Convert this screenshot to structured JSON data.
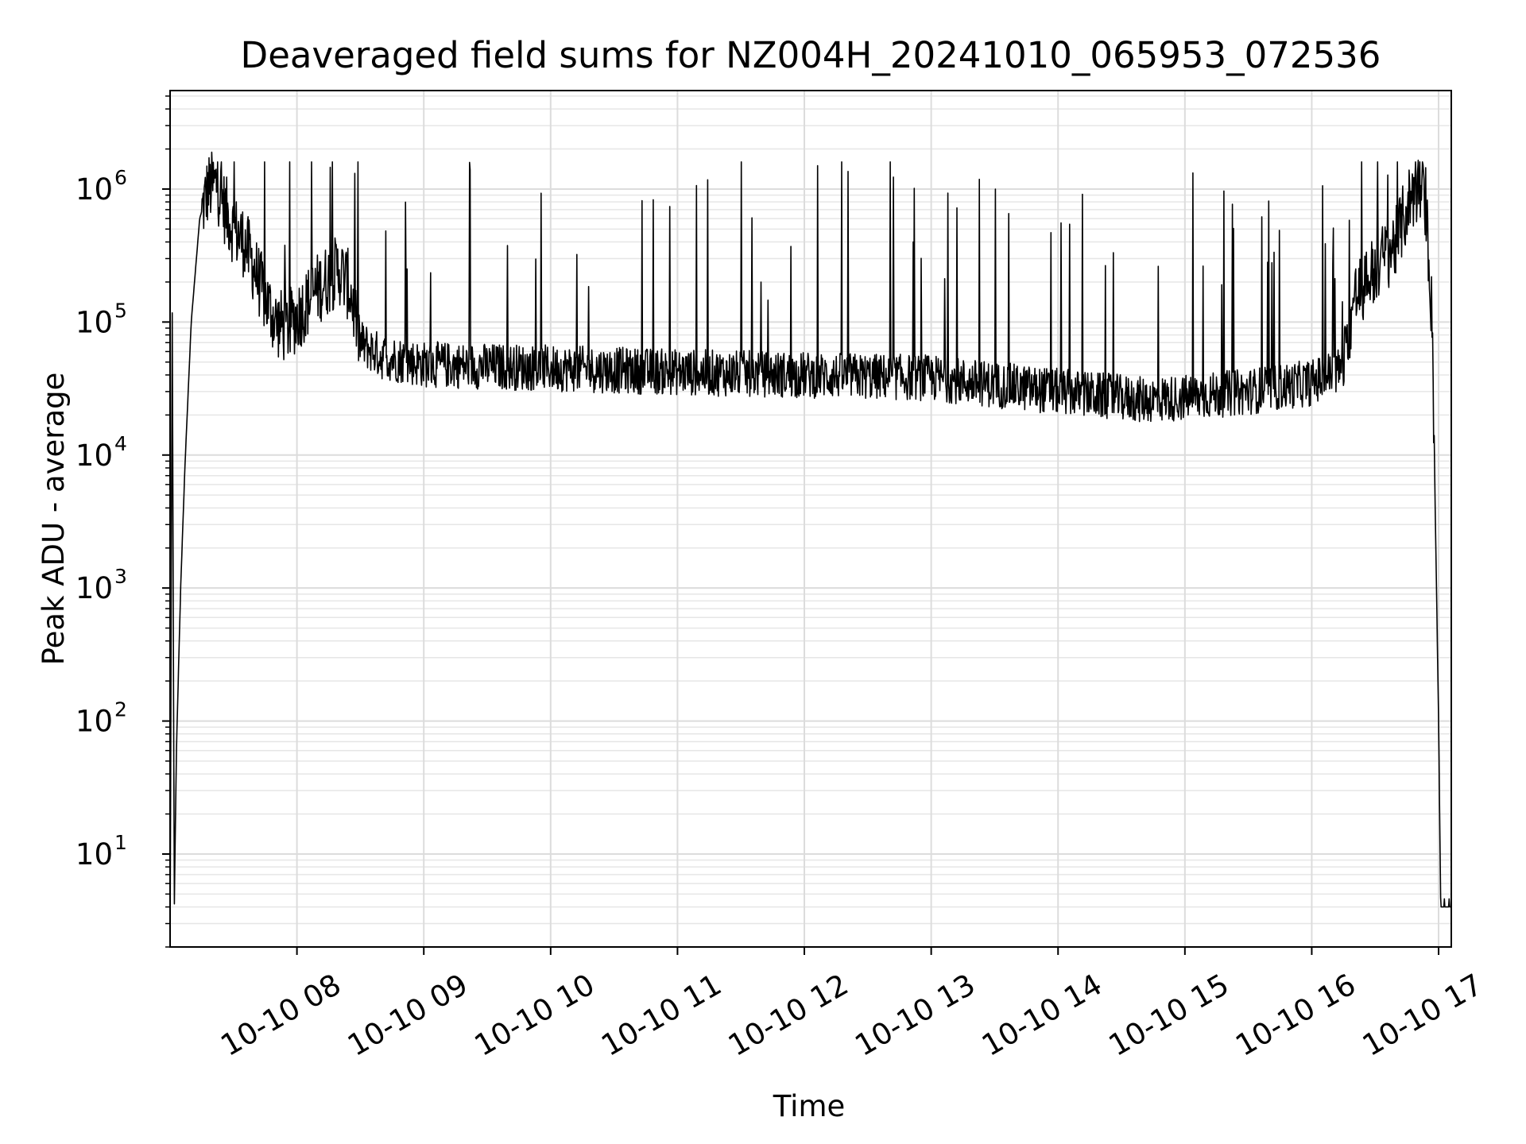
{
  "chart_data": {
    "type": "line",
    "title": "Deaveraged field sums for NZ004H_20241010_065953_072536",
    "xlabel": "Time",
    "ylabel": "Peak ADU - average",
    "yscale": "log",
    "ylim": [
      2,
      5500000
    ],
    "xlim": [
      "2024-10-10 07:00",
      "2024-10-10 17:06"
    ],
    "grid": true,
    "x_ticks": [
      {
        "value": "2024-10-10 08:00",
        "label": "10-10 08"
      },
      {
        "value": "2024-10-10 09:00",
        "label": "10-10 09"
      },
      {
        "value": "2024-10-10 10:00",
        "label": "10-10 10"
      },
      {
        "value": "2024-10-10 11:00",
        "label": "10-10 11"
      },
      {
        "value": "2024-10-10 12:00",
        "label": "10-10 12"
      },
      {
        "value": "2024-10-10 13:00",
        "label": "10-10 13"
      },
      {
        "value": "2024-10-10 14:00",
        "label": "10-10 14"
      },
      {
        "value": "2024-10-10 15:00",
        "label": "10-10 15"
      },
      {
        "value": "2024-10-10 16:00",
        "label": "10-10 16"
      },
      {
        "value": "2024-10-10 17:00",
        "label": "10-10 17"
      }
    ],
    "y_ticks": [
      {
        "value": 10,
        "base": "10",
        "exp": "1"
      },
      {
        "value": 100,
        "base": "10",
        "exp": "2"
      },
      {
        "value": 1000,
        "base": "10",
        "exp": "3"
      },
      {
        "value": 10000,
        "base": "10",
        "exp": "4"
      },
      {
        "value": 100000,
        "base": "10",
        "exp": "5"
      },
      {
        "value": 1000000,
        "base": "10",
        "exp": "6"
      }
    ],
    "series": [
      {
        "color": "#000000",
        "points": [
          [
            "2024-10-10 07:00",
            2
          ],
          [
            "2024-10-10 07:01",
            130000
          ],
          [
            "2024-10-10 07:02",
            4
          ],
          [
            "2024-10-10 07:03",
            60
          ],
          [
            "2024-10-10 07:05",
            1000
          ],
          [
            "2024-10-10 07:07",
            8000
          ],
          [
            "2024-10-10 07:10",
            100000
          ],
          [
            "2024-10-10 07:14",
            600000
          ],
          [
            "2024-10-10 07:18",
            1000000
          ],
          [
            "2024-10-10 07:22",
            1100000
          ],
          [
            "2024-10-10 07:26",
            700000
          ],
          [
            "2024-10-10 07:30",
            500000
          ],
          [
            "2024-10-10 07:35",
            400000
          ],
          [
            "2024-10-10 07:40",
            250000
          ],
          [
            "2024-10-10 07:45",
            150000
          ],
          [
            "2024-10-10 07:50",
            100000
          ],
          [
            "2024-10-10 07:55",
            90000
          ],
          [
            "2024-10-10 08:00",
            110000
          ],
          [
            "2024-10-10 08:10",
            180000
          ],
          [
            "2024-10-10 08:20",
            250000
          ],
          [
            "2024-10-10 08:25",
            180000
          ],
          [
            "2024-10-10 08:30",
            70000
          ],
          [
            "2024-10-10 08:40",
            55000
          ],
          [
            "2024-10-10 09:00",
            48000
          ],
          [
            "2024-10-10 10:00",
            45000
          ],
          [
            "2024-10-10 11:00",
            42000
          ],
          [
            "2024-10-10 12:00",
            40000
          ],
          [
            "2024-10-10 13:00",
            38000
          ],
          [
            "2024-10-10 14:00",
            30000
          ],
          [
            "2024-10-10 14:40",
            26000
          ],
          [
            "2024-10-10 15:00",
            27000
          ],
          [
            "2024-10-10 15:30",
            30000
          ],
          [
            "2024-10-10 16:00",
            35000
          ],
          [
            "2024-10-10 16:15",
            45000
          ],
          [
            "2024-10-10 16:20",
            150000
          ],
          [
            "2024-10-10 16:30",
            250000
          ],
          [
            "2024-10-10 16:40",
            400000
          ],
          [
            "2024-10-10 16:47",
            900000
          ],
          [
            "2024-10-10 16:50",
            1000000
          ],
          [
            "2024-10-10 16:54",
            800000
          ],
          [
            "2024-10-10 16:57",
            100000
          ],
          [
            "2024-10-10 16:59",
            1000
          ],
          [
            "2024-10-10 17:00",
            100
          ],
          [
            "2024-10-10 17:01",
            4
          ],
          [
            "2024-10-10 17:06",
            4
          ]
        ]
      }
    ]
  }
}
